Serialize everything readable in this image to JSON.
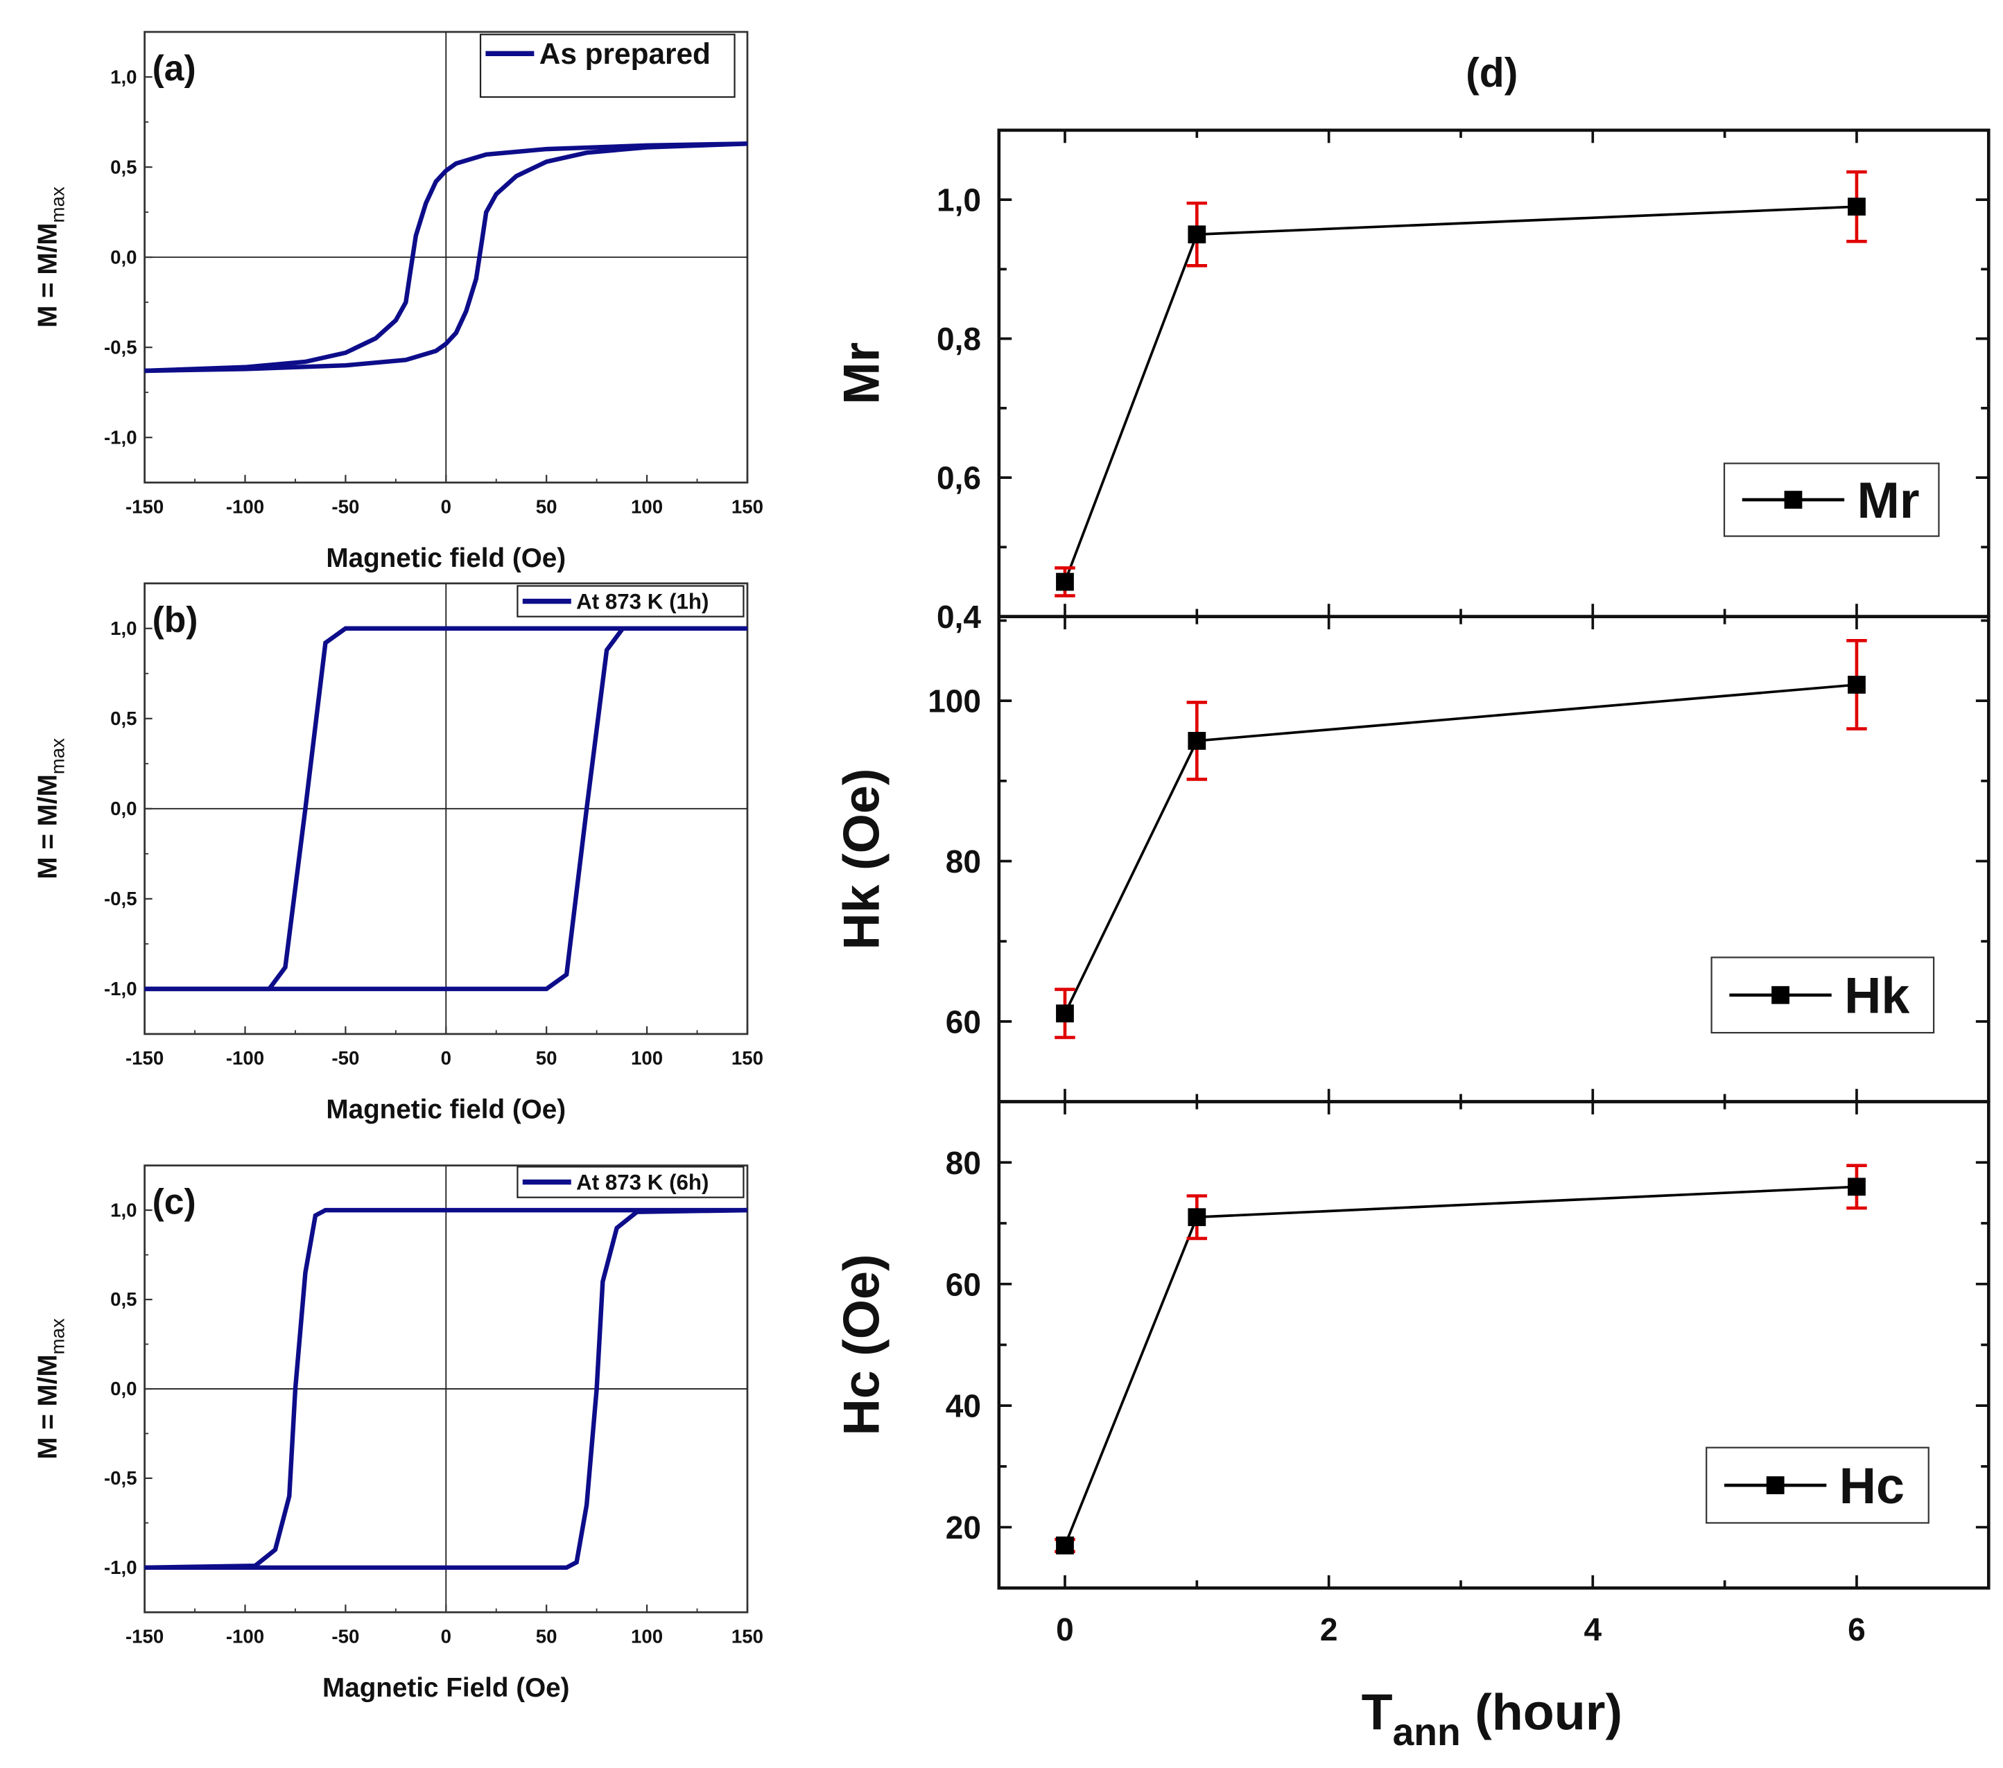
{
  "chart_data": [
    {
      "type": "line",
      "panel_label": "(a)",
      "xlabel": "Magnetic field (Oe)",
      "ylabel": "M = M/M",
      "ylabel_sub": "max",
      "xlim": [
        -150,
        150
      ],
      "ylim": [
        -1.25,
        1.25
      ],
      "xticks": [
        -150,
        -100,
        -50,
        0,
        50,
        100,
        150
      ],
      "yticks": [
        {
          "v": 1.0,
          "label": "1,0"
        },
        {
          "v": 0.5,
          "label": "0,5"
        },
        {
          "v": 0.0,
          "label": "0,0"
        },
        {
          "v": -0.5,
          "label": "-0,5"
        },
        {
          "v": -1.0,
          "label": "-1,0"
        }
      ],
      "legend": "top-right",
      "color": "#0d0d8a",
      "series": [
        {
          "name": "As prepared",
          "descending": [
            [
              150,
              0.63
            ],
            [
              100,
              0.62
            ],
            [
              50,
              0.6
            ],
            [
              20,
              0.57
            ],
            [
              5,
              0.52
            ],
            [
              0,
              0.48
            ],
            [
              -5,
              0.42
            ],
            [
              -10,
              0.3
            ],
            [
              -15,
              0.12
            ],
            [
              -18,
              -0.1
            ],
            [
              -20,
              -0.25
            ],
            [
              -25,
              -0.35
            ],
            [
              -35,
              -0.45
            ],
            [
              -50,
              -0.53
            ],
            [
              -70,
              -0.58
            ],
            [
              -100,
              -0.61
            ],
            [
              -150,
              -0.63
            ]
          ]
        }
      ]
    },
    {
      "type": "line",
      "panel_label": "(b)",
      "xlabel": "Magnetic field (Oe)",
      "ylabel": "M = M/M",
      "ylabel_sub": "max",
      "xlim": [
        -150,
        150
      ],
      "ylim": [
        -1.25,
        1.25
      ],
      "xticks": [
        -150,
        -100,
        -50,
        0,
        50,
        100,
        150
      ],
      "yticks": [
        {
          "v": 1.0,
          "label": "1,0"
        },
        {
          "v": 0.5,
          "label": "0,5"
        },
        {
          "v": 0.0,
          "label": "0,0"
        },
        {
          "v": -0.5,
          "label": "-0,5"
        },
        {
          "v": -1.0,
          "label": "-1,0"
        }
      ],
      "legend": "top-right",
      "color": "#0d0d8a",
      "series": [
        {
          "name": "At 873 K (1h)",
          "descending": [
            [
              150,
              1.0
            ],
            [
              -50,
              1.0
            ],
            [
              -60,
              0.92
            ],
            [
              -70,
              0.0
            ],
            [
              -80,
              -0.88
            ],
            [
              -88,
              -1.0
            ],
            [
              -150,
              -1.0
            ]
          ]
        }
      ]
    },
    {
      "type": "line",
      "panel_label": "(c)",
      "xlabel": "Magnetic Field (Oe)",
      "ylabel": "M = M/M",
      "ylabel_sub": "max",
      "xlim": [
        -150,
        150
      ],
      "ylim": [
        -1.25,
        1.25
      ],
      "xticks": [
        -150,
        -100,
        -50,
        0,
        50,
        100,
        150
      ],
      "yticks": [
        {
          "v": 1.0,
          "label": "1,0"
        },
        {
          "v": 0.5,
          "label": "0,5"
        },
        {
          "v": 0.0,
          "label": "0,0"
        },
        {
          "v": -0.5,
          "label": "-0,5"
        },
        {
          "v": -1.0,
          "label": "-1,0"
        }
      ],
      "legend": "top-right",
      "color": "#0d0d8a",
      "series": [
        {
          "name": "At 873 K (6h)",
          "descending": [
            [
              150,
              1.0
            ],
            [
              -60,
              1.0
            ],
            [
              -65,
              0.97
            ],
            [
              -70,
              0.65
            ],
            [
              -75,
              0.0
            ],
            [
              -78,
              -0.6
            ],
            [
              -85,
              -0.9
            ],
            [
              -95,
              -0.99
            ],
            [
              -150,
              -1.0
            ]
          ]
        }
      ]
    },
    {
      "type": "scatter",
      "panel_label": "(d)",
      "xlabel": "T",
      "xlabel_sub": "ann",
      "xlabel_unit": " (hour)",
      "xlim": [
        -0.5,
        7
      ],
      "xticks": [
        0,
        2,
        4,
        6
      ],
      "marker_color": "#000000",
      "errorbar_color": "#e00000",
      "subplots": [
        {
          "ylabel": "Mr",
          "legend": "Mr",
          "ylim": [
            0.4,
            1.1
          ],
          "yticks": [
            {
              "v": 0.4,
              "label": "0,4"
            },
            {
              "v": 0.6,
              "label": "0,6"
            },
            {
              "v": 0.8,
              "label": "0,8"
            },
            {
              "v": 1.0,
              "label": "1,0"
            }
          ],
          "x": [
            0,
            1,
            6
          ],
          "y": [
            0.45,
            0.95,
            0.99
          ],
          "err": [
            0.02,
            0.045,
            0.05
          ]
        },
        {
          "ylabel": "Hk (Oe)",
          "legend": "Hk",
          "ylim": [
            50,
            110.5
          ],
          "yticks": [
            {
              "v": 60,
              "label": "60"
            },
            {
              "v": 80,
              "label": "80"
            },
            {
              "v": 100,
              "label": "100"
            }
          ],
          "x": [
            0,
            1,
            6
          ],
          "y": [
            61,
            95,
            102
          ],
          "err": [
            3,
            4.8,
            5.5
          ]
        },
        {
          "ylabel": "Hc (Oe)",
          "legend": "Hc",
          "ylim": [
            10,
            90
          ],
          "yticks": [
            {
              "v": 20,
              "label": "20"
            },
            {
              "v": 40,
              "label": "40"
            },
            {
              "v": 60,
              "label": "60"
            },
            {
              "v": 80,
              "label": "80"
            }
          ],
          "x": [
            0,
            1,
            6
          ],
          "y": [
            17,
            71,
            76
          ],
          "err": [
            1,
            3.5,
            3.5
          ]
        }
      ]
    }
  ]
}
